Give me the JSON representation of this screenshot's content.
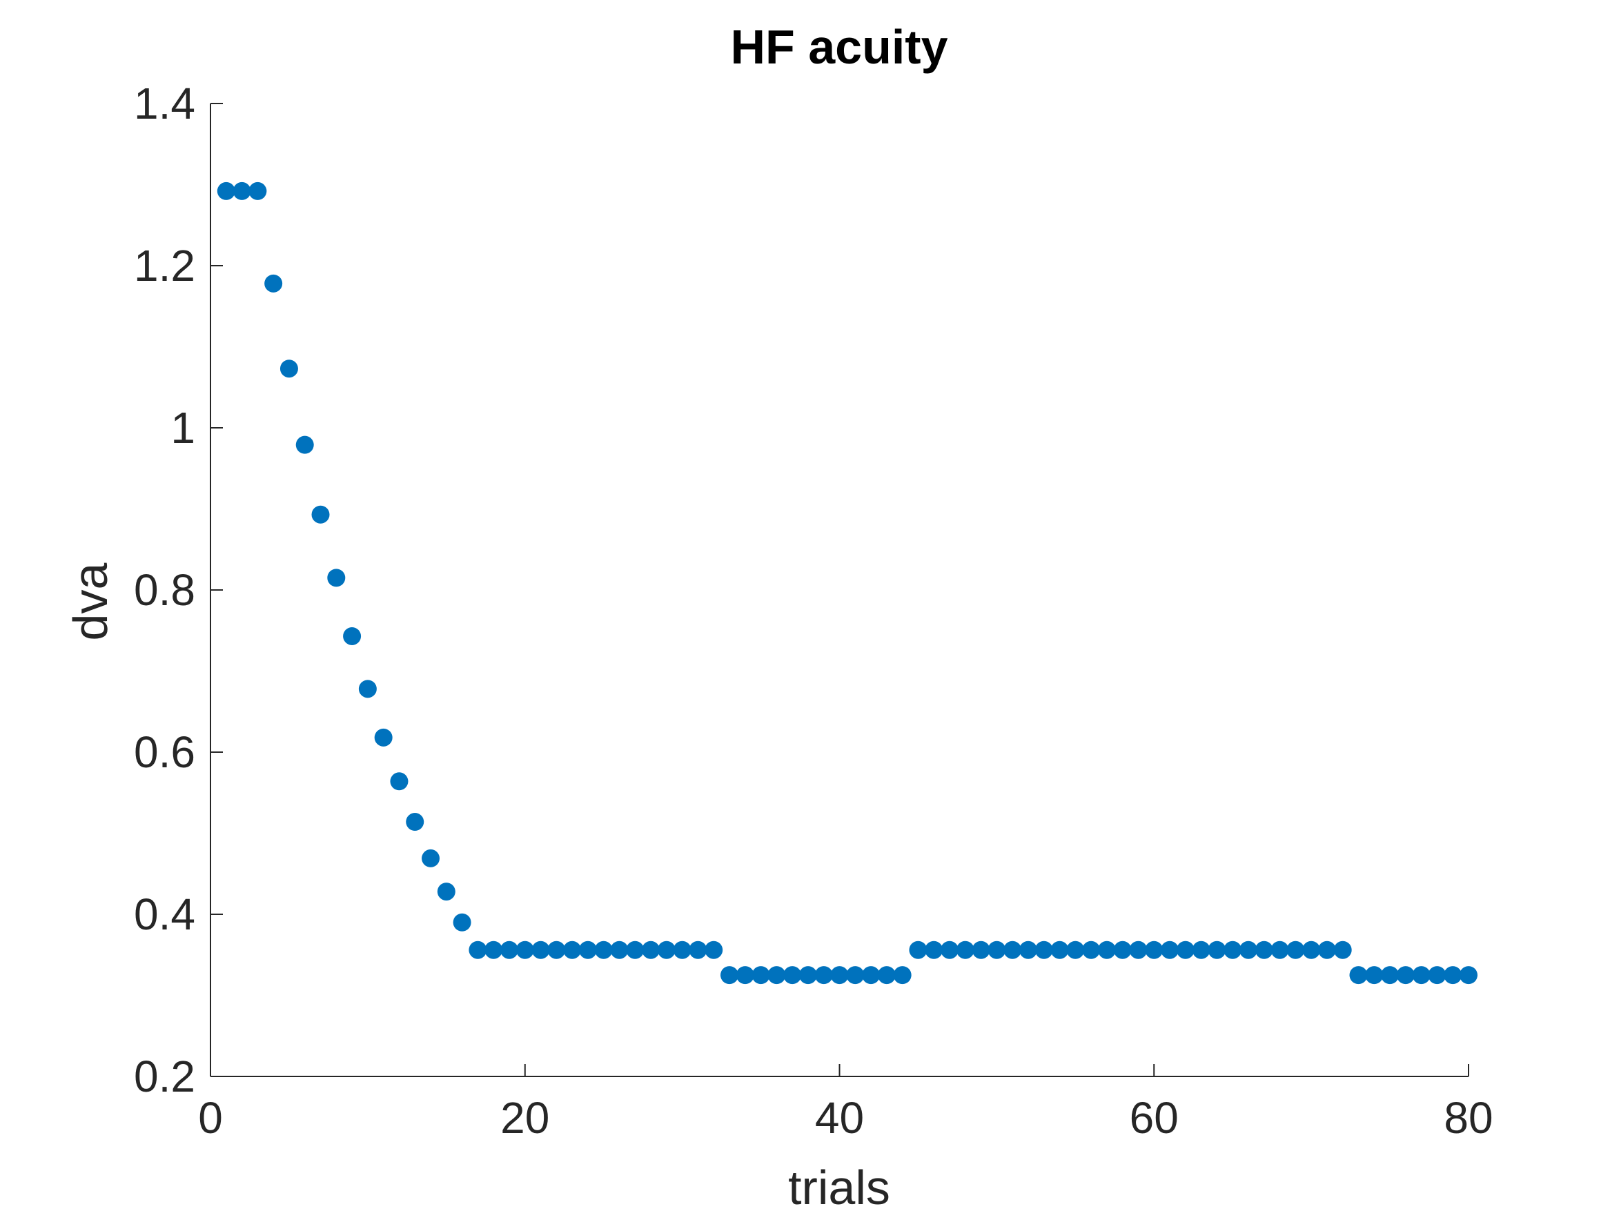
{
  "chart_data": {
    "type": "scatter",
    "title": "HF acuity",
    "xlabel": "trials",
    "ylabel": "dva",
    "xlim": [
      0,
      80
    ],
    "ylim": [
      0.2,
      1.4
    ],
    "x_ticks": [
      0,
      20,
      40,
      60,
      80
    ],
    "x_tick_labels": [
      "0",
      "20",
      "40",
      "60",
      "80"
    ],
    "y_ticks": [
      0.2,
      0.4,
      0.6,
      0.8,
      1.0,
      1.2,
      1.4
    ],
    "y_tick_labels": [
      "0.2",
      "0.4",
      "0.6",
      "0.8",
      "1",
      "1.2",
      "1.4"
    ],
    "grid": false,
    "marker_color": "#0072BD",
    "axis_color": "#262626",
    "series": [
      {
        "x": [
          1,
          2,
          3,
          4,
          5,
          6,
          7,
          8,
          9,
          10,
          11,
          12,
          13,
          14,
          15,
          16,
          17,
          18,
          19,
          20,
          21,
          22,
          23,
          24,
          25,
          26,
          27,
          28,
          29,
          30,
          31,
          32,
          33,
          34,
          35,
          36,
          37,
          38,
          39,
          40,
          41,
          42,
          43,
          44,
          45,
          46,
          47,
          48,
          49,
          50,
          51,
          52,
          53,
          54,
          55,
          56,
          57,
          58,
          59,
          60,
          61,
          62,
          63,
          64,
          65,
          66,
          67,
          68,
          69,
          70,
          71,
          72,
          73,
          74,
          75,
          76,
          77,
          78,
          79,
          80
        ],
        "y": [
          1.292,
          1.292,
          1.292,
          1.178,
          1.073,
          0.979,
          0.893,
          0.815,
          0.743,
          0.678,
          0.618,
          0.564,
          0.514,
          0.469,
          0.428,
          0.39,
          0.356,
          0.356,
          0.356,
          0.356,
          0.356,
          0.356,
          0.356,
          0.356,
          0.356,
          0.356,
          0.356,
          0.356,
          0.356,
          0.356,
          0.356,
          0.356,
          0.325,
          0.325,
          0.325,
          0.325,
          0.325,
          0.325,
          0.325,
          0.325,
          0.325,
          0.325,
          0.325,
          0.325,
          0.356,
          0.356,
          0.356,
          0.356,
          0.356,
          0.356,
          0.356,
          0.356,
          0.356,
          0.356,
          0.356,
          0.356,
          0.356,
          0.356,
          0.356,
          0.356,
          0.356,
          0.356,
          0.356,
          0.356,
          0.356,
          0.356,
          0.356,
          0.356,
          0.356,
          0.356,
          0.356,
          0.356,
          0.325,
          0.325,
          0.325,
          0.325,
          0.325,
          0.325,
          0.325,
          0.325
        ]
      }
    ]
  }
}
